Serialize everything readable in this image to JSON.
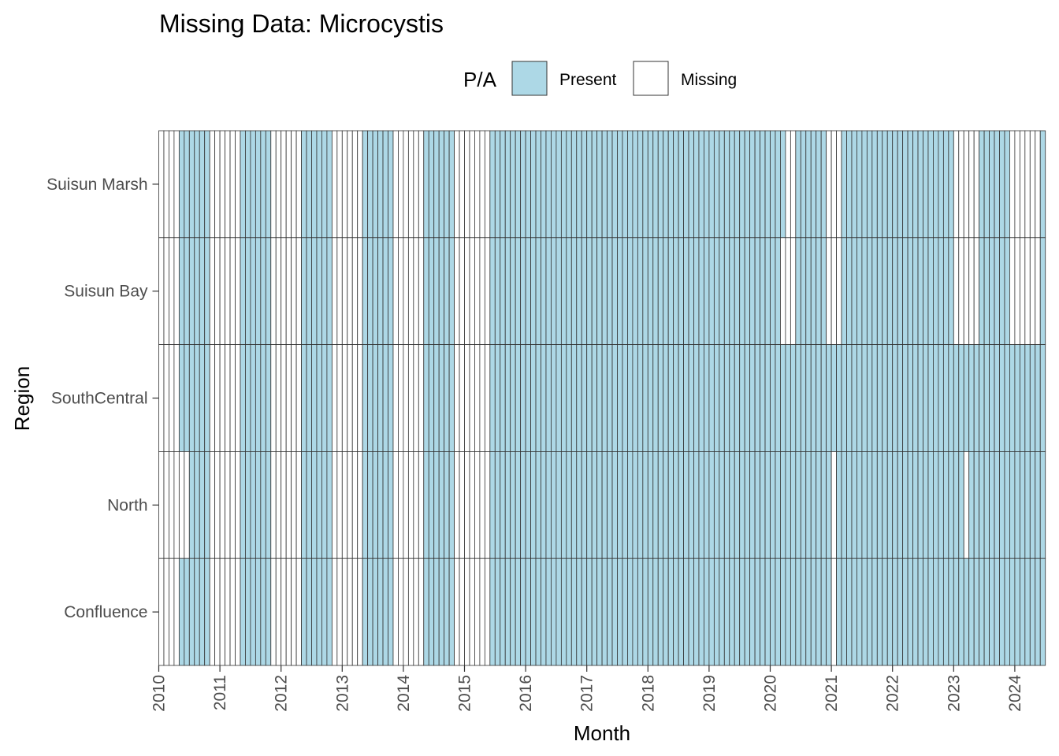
{
  "chart_data": {
    "type": "heatmap",
    "title": "Missing Data: Microcystis",
    "xlabel": "Month",
    "ylabel": "Region",
    "legend": {
      "title": "P/A",
      "position": "top",
      "entries": [
        {
          "label": "Present",
          "color": "#ADD8E6"
        },
        {
          "label": "Missing",
          "color": "#FFFFFF"
        }
      ]
    },
    "x_ticks": [
      "2010",
      "2011",
      "2012",
      "2013",
      "2014",
      "2015",
      "2016",
      "2017",
      "2018",
      "2019",
      "2020",
      "2021",
      "2022",
      "2023",
      "2024"
    ],
    "x_range": [
      "2010-01",
      "2024-06"
    ],
    "regions": [
      "Suisun Marsh",
      "Suisun Bay",
      "SouthCentral",
      "North",
      "Confluence"
    ],
    "present_ranges": {
      "Suisun Marsh": [
        [
          "2010-05",
          "2010-10"
        ],
        [
          "2011-05",
          "2011-10"
        ],
        [
          "2012-05",
          "2012-10"
        ],
        [
          "2013-05",
          "2013-10"
        ],
        [
          "2014-05",
          "2014-10"
        ],
        [
          "2015-06",
          "2020-03"
        ],
        [
          "2020-06",
          "2020-11"
        ],
        [
          "2021-03",
          "2022-12"
        ],
        [
          "2023-06",
          "2023-11"
        ],
        [
          "2024-06",
          "2024-06"
        ]
      ],
      "Suisun Bay": [
        [
          "2010-05",
          "2010-10"
        ],
        [
          "2011-05",
          "2011-10"
        ],
        [
          "2012-05",
          "2012-10"
        ],
        [
          "2013-05",
          "2013-10"
        ],
        [
          "2014-05",
          "2014-10"
        ],
        [
          "2015-06",
          "2020-02"
        ],
        [
          "2020-06",
          "2020-11"
        ],
        [
          "2021-03",
          "2022-12"
        ],
        [
          "2023-06",
          "2023-11"
        ],
        [
          "2024-06",
          "2024-06"
        ]
      ],
      "SouthCentral": [
        [
          "2010-05",
          "2010-10"
        ],
        [
          "2011-05",
          "2011-10"
        ],
        [
          "2012-05",
          "2012-10"
        ],
        [
          "2013-05",
          "2013-10"
        ],
        [
          "2014-05",
          "2014-10"
        ],
        [
          "2015-06",
          "2024-06"
        ]
      ],
      "North": [
        [
          "2010-07",
          "2010-10"
        ],
        [
          "2011-05",
          "2011-10"
        ],
        [
          "2012-05",
          "2012-10"
        ],
        [
          "2013-05",
          "2013-10"
        ],
        [
          "2014-05",
          "2014-10"
        ],
        [
          "2015-06",
          "2020-12"
        ],
        [
          "2021-02",
          "2023-02"
        ],
        [
          "2023-04",
          "2024-06"
        ]
      ],
      "Confluence": [
        [
          "2010-05",
          "2010-10"
        ],
        [
          "2011-05",
          "2011-10"
        ],
        [
          "2012-05",
          "2012-10"
        ],
        [
          "2013-05",
          "2013-10"
        ],
        [
          "2014-05",
          "2014-10"
        ],
        [
          "2015-06",
          "2020-12"
        ],
        [
          "2021-02",
          "2024-06"
        ]
      ]
    },
    "grid": false
  }
}
